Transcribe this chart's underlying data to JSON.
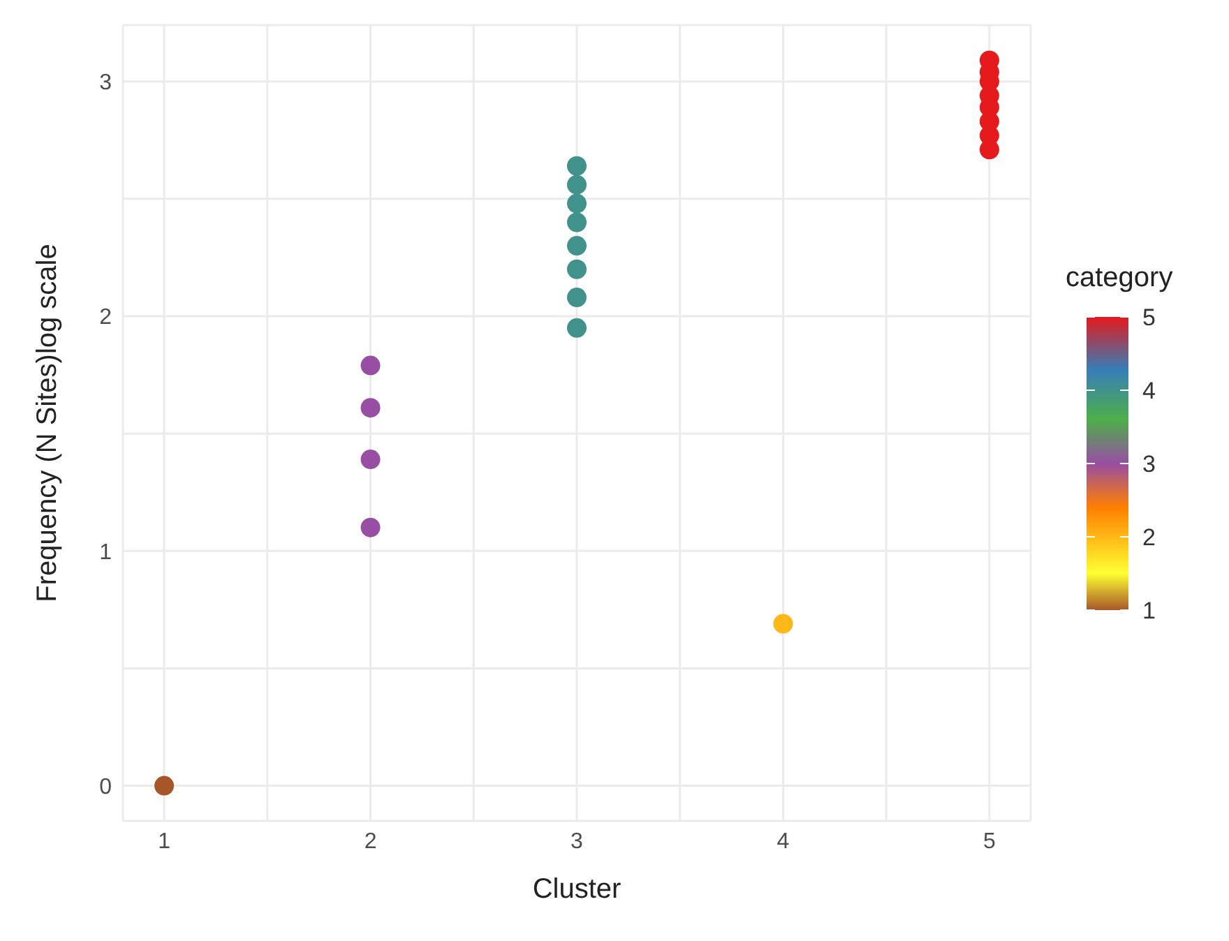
{
  "chart_data": {
    "type": "scatter",
    "xlabel": "Cluster",
    "ylabel": "Frequency (N Sites)log scale",
    "clabel": "category",
    "x": [
      1,
      2,
      2,
      2,
      2,
      3,
      3,
      3,
      3,
      3,
      3,
      3,
      3,
      4,
      5,
      5,
      5,
      5,
      5,
      5,
      5,
      5
    ],
    "values": [
      0,
      1.1,
      1.39,
      1.61,
      1.79,
      1.95,
      2.08,
      2.2,
      2.3,
      2.4,
      2.48,
      2.56,
      2.64,
      0.69,
      2.71,
      2.77,
      2.83,
      2.89,
      2.94,
      3.0,
      3.04,
      3.09
    ],
    "cvalues": [
      1,
      3,
      3,
      3,
      3,
      4,
      4,
      4,
      4,
      4,
      4,
      4,
      4,
      2,
      5,
      5,
      5,
      5,
      5,
      5,
      5,
      5
    ],
    "clim": [
      1,
      5
    ],
    "cticks": [
      1,
      2,
      3,
      4,
      5
    ],
    "xlim": [
      0.8,
      5.2
    ],
    "xticks": [
      1,
      {
        "value": 1.5,
        "label": null
      },
      2,
      {
        "value": 2.5,
        "label": null
      },
      3,
      {
        "value": 3.5,
        "label": null
      },
      4,
      {
        "value": 4.5,
        "label": null
      },
      5
    ],
    "ylim": [
      -0.15,
      3.24
    ],
    "yticks": [
      0,
      {
        "value": 0.5,
        "label": null
      },
      1,
      {
        "value": 1.5,
        "label": null
      },
      2,
      {
        "value": 2.5,
        "label": null
      },
      3
    ],
    "grid": true,
    "marker": "circle"
  }
}
